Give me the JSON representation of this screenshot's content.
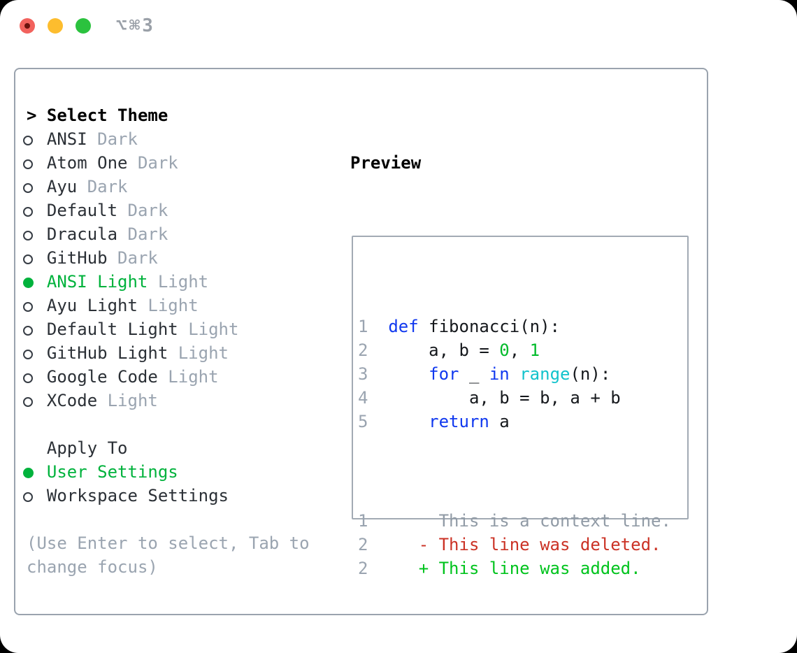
{
  "titlebar": {
    "shortcut": "⌥⌘3",
    "buttons": [
      "close",
      "minimize",
      "zoom"
    ]
  },
  "theme_list": {
    "header_marker": ">",
    "header": "Select Theme",
    "items": [
      {
        "name": "ANSI",
        "tag": "Dark",
        "selected": false
      },
      {
        "name": "Atom One",
        "tag": "Dark",
        "selected": false
      },
      {
        "name": "Ayu",
        "tag": "Dark",
        "selected": false
      },
      {
        "name": "Default",
        "tag": "Dark",
        "selected": false
      },
      {
        "name": "Dracula",
        "tag": "Dark",
        "selected": false
      },
      {
        "name": "GitHub",
        "tag": "Dark",
        "selected": false
      },
      {
        "name": "ANSI Light",
        "tag": "Light",
        "selected": true
      },
      {
        "name": "Ayu Light",
        "tag": "Light",
        "selected": false
      },
      {
        "name": "Default Light",
        "tag": "Light",
        "selected": false
      },
      {
        "name": "GitHub Light",
        "tag": "Light",
        "selected": false
      },
      {
        "name": "Google Code",
        "tag": "Light",
        "selected": false
      },
      {
        "name": "XCode",
        "tag": "Light",
        "selected": false
      }
    ]
  },
  "apply_to": {
    "header": "Apply To",
    "items": [
      {
        "name": "User Settings",
        "selected": true
      },
      {
        "name": "Workspace Settings",
        "selected": false
      }
    ]
  },
  "hint_lines": [
    "(Use Enter to select, Tab to",
    "change focus)"
  ],
  "preview": {
    "title": "Preview",
    "code_lines": [
      {
        "num": "1",
        "tokens": [
          [
            "kw",
            "def"
          ],
          [
            "pl",
            " fibonacci(n):"
          ]
        ]
      },
      {
        "num": "2",
        "tokens": [
          [
            "pl",
            "    a, b = "
          ],
          [
            "num",
            "0"
          ],
          [
            "pl",
            ", "
          ],
          [
            "num",
            "1"
          ]
        ]
      },
      {
        "num": "3",
        "tokens": [
          [
            "pl",
            "    "
          ],
          [
            "kw",
            "for"
          ],
          [
            "pl",
            " _ "
          ],
          [
            "kw",
            "in"
          ],
          [
            "pl",
            " "
          ],
          [
            "fn",
            "range"
          ],
          [
            "pl",
            "(n):"
          ]
        ]
      },
      {
        "num": "4",
        "tokens": [
          [
            "pl",
            "        a, b = b, a + b"
          ]
        ]
      },
      {
        "num": "5",
        "tokens": [
          [
            "pl",
            "    "
          ],
          [
            "kw",
            "return"
          ],
          [
            "pl",
            " a"
          ]
        ]
      }
    ],
    "diff_lines": [
      {
        "num": "1",
        "kind": "context",
        "text": "     This is a context line."
      },
      {
        "num": "2",
        "kind": "deleted",
        "text": "   - This line was deleted."
      },
      {
        "num": "2",
        "kind": "added",
        "text": "   + This line was added."
      }
    ]
  },
  "colors": {
    "accent_green": "#00b23c",
    "keyword_blue": "#1038ef",
    "builtin_cyan": "#12c3cc",
    "number_green": "#00bb2a",
    "added_green": "#00c31d",
    "deleted_red": "#cb3225",
    "muted_gray": "#9aa4b0",
    "context_gray": "#919ba6",
    "border_gray": "#9aa3ae"
  }
}
